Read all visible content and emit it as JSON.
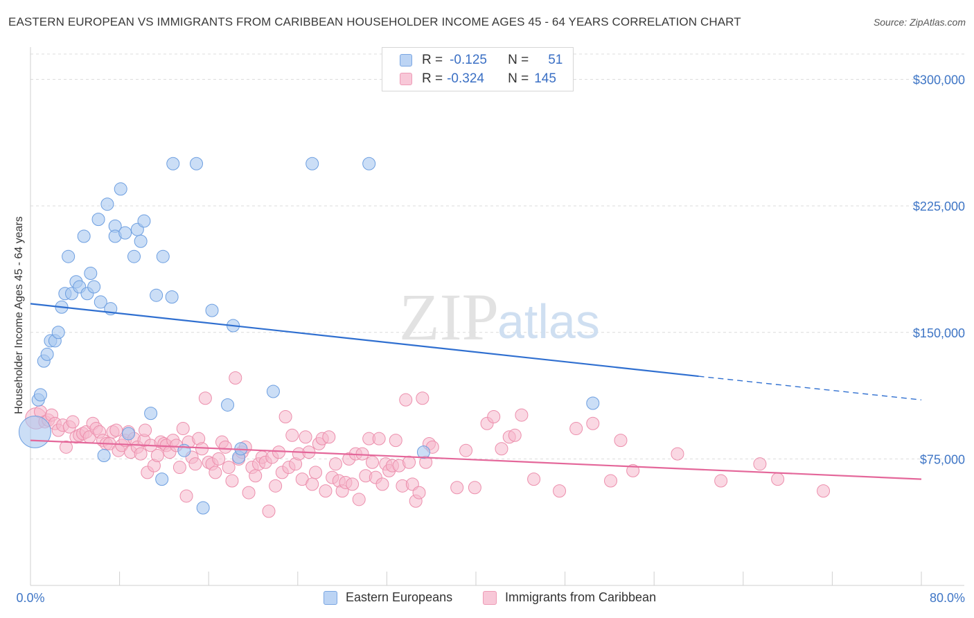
{
  "header": {
    "title": "EASTERN EUROPEAN VS IMMIGRANTS FROM CARIBBEAN HOUSEHOLDER INCOME AGES 45 - 64 YEARS CORRELATION CHART",
    "source": "Source: ZipAtlas.com"
  },
  "watermark": {
    "zip": "ZIP",
    "atlas": "atlas"
  },
  "legend_top": {
    "rows": [
      {
        "r_label": "R =",
        "r_value": "-0.125",
        "n_label": "N =",
        "n_value": "51"
      },
      {
        "r_label": "R =",
        "r_value": "-0.324",
        "n_label": "N =",
        "n_value": "145"
      }
    ]
  },
  "colors": {
    "blue_fill": "#a8c8f0",
    "blue_stroke": "#6c9ee0",
    "blue_line": "#2f6fd0",
    "pink_fill": "#f6b8cc",
    "pink_stroke": "#ec8eac",
    "pink_line": "#e4679a",
    "axis_text": "#3f76c6",
    "grid": "#dcdcdc"
  },
  "chart_data": {
    "type": "scatter",
    "title": "EASTERN EUROPEAN VS IMMIGRANTS FROM CARIBBEAN HOUSEHOLDER INCOME AGES 45 - 64 YEARS CORRELATION CHART",
    "xlabel": "",
    "ylabel": "Householder Income Ages 45 - 64 years",
    "xlim": [
      0,
      80
    ],
    "ylim": [
      0,
      315000
    ],
    "x_tick_labels": [
      "0.0%",
      "80.0%"
    ],
    "y_ticks": [
      75000,
      150000,
      225000,
      300000
    ],
    "y_tick_labels": [
      "$75,000",
      "$150,000",
      "$225,000",
      "$300,000"
    ],
    "grid": true,
    "legend_position": "top-center and bottom",
    "series": [
      {
        "name": "Eastern Europeans",
        "color": "#a8c8f0",
        "points": [
          [
            0.4,
            91000,
            3
          ],
          [
            0.7,
            110000,
            1
          ],
          [
            0.9,
            113000,
            1
          ],
          [
            1.2,
            133000,
            1
          ],
          [
            1.5,
            137000,
            1
          ],
          [
            1.8,
            145000,
            1
          ],
          [
            2.2,
            145000,
            1
          ],
          [
            2.5,
            150000,
            1
          ],
          [
            2.8,
            165000,
            1
          ],
          [
            3.1,
            173000,
            1
          ],
          [
            3.4,
            195000,
            1
          ],
          [
            3.7,
            173000,
            1
          ],
          [
            4.1,
            180000,
            1
          ],
          [
            4.4,
            177000,
            1
          ],
          [
            4.8,
            207000,
            1
          ],
          [
            5.1,
            173000,
            1
          ],
          [
            5.4,
            185000,
            1
          ],
          [
            5.7,
            177000,
            1
          ],
          [
            6.1,
            217000,
            1
          ],
          [
            6.3,
            168000,
            1
          ],
          [
            6.6,
            77000,
            1
          ],
          [
            6.9,
            226000,
            1
          ],
          [
            7.2,
            164000,
            1
          ],
          [
            7.6,
            213000,
            1
          ],
          [
            7.6,
            207000,
            1
          ],
          [
            8.1,
            235000,
            1
          ],
          [
            8.5,
            209000,
            1
          ],
          [
            8.8,
            90000,
            1
          ],
          [
            9.3,
            195000,
            1
          ],
          [
            9.6,
            211000,
            1
          ],
          [
            9.9,
            204000,
            1
          ],
          [
            10.2,
            216000,
            1
          ],
          [
            10.8,
            102000,
            1
          ],
          [
            11.3,
            172000,
            1
          ],
          [
            11.8,
            63000,
            1
          ],
          [
            11.9,
            195000,
            1
          ],
          [
            12.7,
            171000,
            1
          ],
          [
            12.8,
            250000,
            1
          ],
          [
            13.8,
            80000,
            1
          ],
          [
            14.9,
            250000,
            1
          ],
          [
            15.5,
            46000,
            1
          ],
          [
            16.3,
            163000,
            1
          ],
          [
            17.7,
            107000,
            1
          ],
          [
            18.2,
            154000,
            1
          ],
          [
            18.7,
            76000,
            1
          ],
          [
            18.9,
            81000,
            1
          ],
          [
            21.8,
            115000,
            1
          ],
          [
            25.3,
            250000,
            1
          ],
          [
            30.4,
            250000,
            1
          ],
          [
            35.3,
            79000,
            1
          ],
          [
            50.5,
            108000,
            1
          ]
        ],
        "trend": {
          "x_start": 0,
          "y_start": 167000,
          "x_solid_end": 60,
          "y_solid_end": 124000,
          "x_end": 80,
          "y_end": 110000
        }
      },
      {
        "name": "Immigrants from Caribbean",
        "color": "#f6b8cc",
        "points": [
          [
            0.5,
            99000,
            2
          ],
          [
            0.9,
            103000,
            1
          ],
          [
            1.3,
            97000,
            1
          ],
          [
            1.6,
            98000,
            1
          ],
          [
            1.9,
            101000,
            1
          ],
          [
            2.2,
            96000,
            1
          ],
          [
            2.5,
            92000,
            1
          ],
          [
            2.9,
            95000,
            1
          ],
          [
            3.2,
            82000,
            1
          ],
          [
            3.5,
            94000,
            1
          ],
          [
            3.8,
            97000,
            1
          ],
          [
            4.1,
            88000,
            1
          ],
          [
            4.4,
            89000,
            1
          ],
          [
            4.7,
            90000,
            1
          ],
          [
            5.0,
            91000,
            1
          ],
          [
            5.3,
            88000,
            1
          ],
          [
            5.6,
            96000,
            1
          ],
          [
            5.9,
            93000,
            1
          ],
          [
            6.2,
            91000,
            1
          ],
          [
            6.5,
            86000,
            1
          ],
          [
            6.8,
            84000,
            1
          ],
          [
            7.1,
            84000,
            1
          ],
          [
            7.4,
            91000,
            1
          ],
          [
            7.7,
            92000,
            1
          ],
          [
            7.9,
            80000,
            1
          ],
          [
            8.2,
            83000,
            1
          ],
          [
            8.5,
            86000,
            1
          ],
          [
            8.8,
            91000,
            1
          ],
          [
            9.0,
            79000,
            1
          ],
          [
            9.3,
            87000,
            1
          ],
          [
            9.6,
            82000,
            1
          ],
          [
            9.9,
            78000,
            1
          ],
          [
            10.2,
            86000,
            1
          ],
          [
            10.3,
            92000,
            1
          ],
          [
            10.5,
            67000,
            1
          ],
          [
            10.8,
            83000,
            1
          ],
          [
            11.1,
            71000,
            1
          ],
          [
            11.4,
            77000,
            1
          ],
          [
            11.7,
            85000,
            1
          ],
          [
            12.0,
            84000,
            1
          ],
          [
            12.2,
            83000,
            1
          ],
          [
            12.5,
            79000,
            1
          ],
          [
            12.8,
            86000,
            1
          ],
          [
            13.1,
            83000,
            1
          ],
          [
            13.4,
            70000,
            1
          ],
          [
            13.7,
            93000,
            1
          ],
          [
            14.0,
            53000,
            1
          ],
          [
            14.2,
            85000,
            1
          ],
          [
            14.5,
            76000,
            1
          ],
          [
            14.8,
            72000,
            1
          ],
          [
            15.1,
            87000,
            1
          ],
          [
            15.4,
            81000,
            1
          ],
          [
            15.7,
            111000,
            1
          ],
          [
            16.0,
            73000,
            1
          ],
          [
            16.3,
            72000,
            1
          ],
          [
            16.6,
            67000,
            1
          ],
          [
            16.9,
            75000,
            1
          ],
          [
            17.2,
            85000,
            1
          ],
          [
            17.5,
            82000,
            1
          ],
          [
            17.8,
            70000,
            1
          ],
          [
            18.1,
            62000,
            1
          ],
          [
            18.4,
            123000,
            1
          ],
          [
            18.7,
            75000,
            1
          ],
          [
            19.0,
            79000,
            1
          ],
          [
            19.3,
            82000,
            1
          ],
          [
            19.6,
            55000,
            1
          ],
          [
            19.9,
            70000,
            1
          ],
          [
            20.2,
            65000,
            1
          ],
          [
            20.5,
            72000,
            1
          ],
          [
            20.8,
            76000,
            1
          ],
          [
            21.1,
            73000,
            1
          ],
          [
            21.4,
            44000,
            1
          ],
          [
            21.7,
            76000,
            1
          ],
          [
            22.0,
            59000,
            1
          ],
          [
            22.3,
            79000,
            1
          ],
          [
            22.6,
            67000,
            1
          ],
          [
            22.9,
            100000,
            1
          ],
          [
            23.2,
            70000,
            1
          ],
          [
            23.5,
            89000,
            1
          ],
          [
            23.8,
            72000,
            1
          ],
          [
            24.1,
            78000,
            1
          ],
          [
            24.4,
            63000,
            1
          ],
          [
            24.7,
            88000,
            1
          ],
          [
            25.0,
            79000,
            1
          ],
          [
            25.3,
            60000,
            1
          ],
          [
            25.6,
            67000,
            1
          ],
          [
            25.9,
            84000,
            1
          ],
          [
            26.2,
            87000,
            1
          ],
          [
            26.5,
            56000,
            1
          ],
          [
            26.8,
            88000,
            1
          ],
          [
            27.1,
            64000,
            1
          ],
          [
            27.4,
            72000,
            1
          ],
          [
            27.7,
            62000,
            1
          ],
          [
            28.0,
            56000,
            1
          ],
          [
            28.3,
            61000,
            1
          ],
          [
            28.6,
            75000,
            1
          ],
          [
            28.9,
            60000,
            1
          ],
          [
            29.2,
            78000,
            1
          ],
          [
            29.5,
            51000,
            1
          ],
          [
            29.8,
            78000,
            1
          ],
          [
            30.1,
            65000,
            1
          ],
          [
            30.4,
            87000,
            1
          ],
          [
            30.7,
            73000,
            1
          ],
          [
            31.0,
            64000,
            1
          ],
          [
            31.3,
            87000,
            1
          ],
          [
            31.6,
            60000,
            1
          ],
          [
            31.9,
            72000,
            1
          ],
          [
            32.2,
            68000,
            1
          ],
          [
            32.5,
            71000,
            1
          ],
          [
            32.8,
            86000,
            1
          ],
          [
            33.1,
            71000,
            1
          ],
          [
            33.4,
            59000,
            1
          ],
          [
            33.7,
            110000,
            1
          ],
          [
            34.0,
            73000,
            1
          ],
          [
            34.3,
            60000,
            1
          ],
          [
            34.6,
            50000,
            1
          ],
          [
            34.9,
            55000,
            1
          ],
          [
            35.2,
            111000,
            1
          ],
          [
            35.5,
            73000,
            1
          ],
          [
            35.8,
            84000,
            1
          ],
          [
            36.1,
            82000,
            1
          ],
          [
            38.3,
            58000,
            1
          ],
          [
            39.1,
            80000,
            1
          ],
          [
            39.9,
            58000,
            1
          ],
          [
            41.0,
            96000,
            1
          ],
          [
            41.6,
            100000,
            1
          ],
          [
            42.3,
            81000,
            1
          ],
          [
            43.0,
            88000,
            1
          ],
          [
            43.5,
            89000,
            1
          ],
          [
            44.1,
            101000,
            1
          ],
          [
            45.2,
            63000,
            1
          ],
          [
            47.5,
            56000,
            1
          ],
          [
            49.0,
            93000,
            1
          ],
          [
            50.5,
            96000,
            1
          ],
          [
            52.1,
            62000,
            1
          ],
          [
            53.0,
            86000,
            1
          ],
          [
            54.1,
            68000,
            1
          ],
          [
            58.1,
            78000,
            1
          ],
          [
            62.0,
            62000,
            1
          ],
          [
            65.5,
            72000,
            1
          ],
          [
            67.1,
            63000,
            1
          ],
          [
            71.2,
            56000,
            1
          ]
        ],
        "trend": {
          "x_start": 0,
          "y_start": 86000,
          "x_end": 80,
          "y_end": 63000
        }
      }
    ]
  },
  "bottom_legend": {
    "items": [
      {
        "label": "Eastern Europeans"
      },
      {
        "label": "Immigrants from Caribbean"
      }
    ]
  }
}
